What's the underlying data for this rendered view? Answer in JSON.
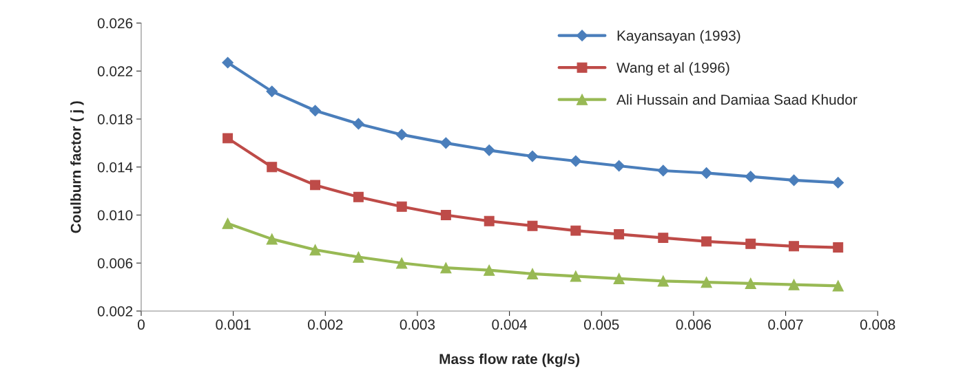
{
  "chart_data": {
    "type": "line",
    "xlabel": "Mass flow rate (kg/s)",
    "ylabel": "Coulburn factor ( j )",
    "x": [
      0.00094,
      0.00142,
      0.00189,
      0.00236,
      0.00283,
      0.00331,
      0.00378,
      0.00425,
      0.00472,
      0.00519,
      0.00567,
      0.00614,
      0.00662,
      0.00709,
      0.00757
    ],
    "series": [
      {
        "name": "Kayansayan (1993)",
        "color": "#4a7ebb",
        "marker": "diamond",
        "values": [
          0.0227,
          0.0203,
          0.0187,
          0.0176,
          0.0167,
          0.016,
          0.0154,
          0.0149,
          0.0145,
          0.0141,
          0.0137,
          0.0135,
          0.0132,
          0.0129,
          0.0127
        ]
      },
      {
        "name": "Wang et al (1996)",
        "color": "#be4b48",
        "marker": "square",
        "values": [
          0.0164,
          0.014,
          0.0125,
          0.0115,
          0.0107,
          0.01,
          0.0095,
          0.0091,
          0.0087,
          0.0084,
          0.0081,
          0.0078,
          0.0076,
          0.0074,
          0.0073
        ]
      },
      {
        "name": "Ali Hussain and Damiaa Saad Khudor",
        "color": "#98b954",
        "marker": "triangle",
        "values": [
          0.0093,
          0.008,
          0.0071,
          0.0065,
          0.006,
          0.0056,
          0.0054,
          0.0051,
          0.0049,
          0.0047,
          0.0045,
          0.0044,
          0.0043,
          0.0042,
          0.0041
        ]
      }
    ],
    "xlim": [
      0,
      0.008
    ],
    "xticks": [
      0,
      0.001,
      0.002,
      0.003,
      0.004,
      0.005,
      0.006,
      0.007,
      0.008
    ],
    "ylim": [
      0.002,
      0.026
    ],
    "yticks": [
      0.002,
      0.006,
      {
        "value": 0.01,
        "label": "0.010"
      },
      0.014,
      0.018,
      0.022,
      0.026
    ],
    "grid": false,
    "legend": "top right",
    "line_style": "solid"
  }
}
